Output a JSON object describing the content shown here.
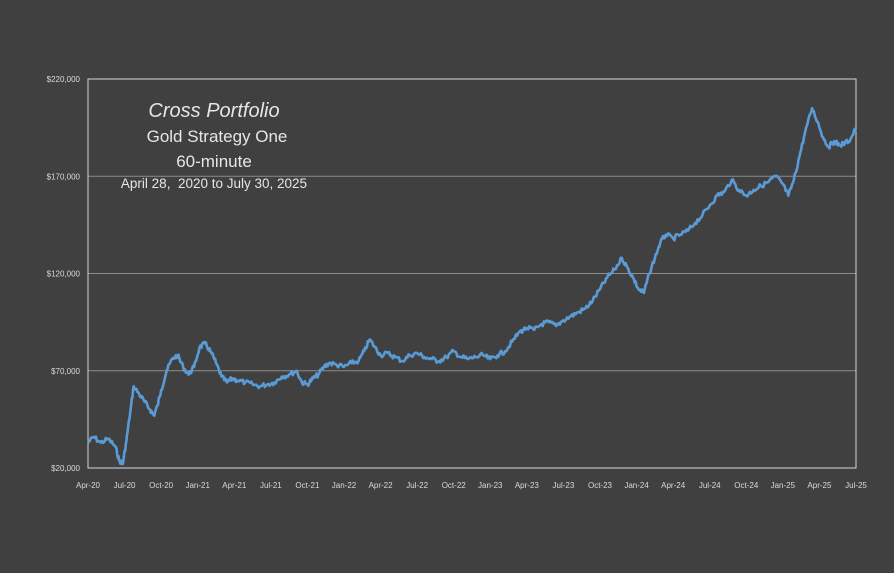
{
  "chart_data": {
    "type": "line",
    "title": "Cross Portfolio",
    "subtitle_lines": [
      "Gold Strategy One",
      "60-minute",
      "April 28,  2020 to July 30, 2025"
    ],
    "xlabel": "",
    "ylabel": "",
    "x_categories": [
      "Apr-20",
      "Jul-20",
      "Oct-20",
      "Jan-21",
      "Apr-21",
      "Jul-21",
      "Oct-21",
      "Jan-22",
      "Apr-22",
      "Jul-22",
      "Oct-22",
      "Jan-23",
      "Apr-23",
      "Jul-23",
      "Oct-23",
      "Jan-24",
      "Apr-24",
      "Jul-24",
      "Oct-24",
      "Jan-25",
      "Apr-25",
      "Jul-25"
    ],
    "y_ticks": [
      20000,
      70000,
      120000,
      170000,
      220000
    ],
    "y_tick_labels": [
      "$20,000",
      "$70,000",
      "$120,000",
      "$170,000",
      "$220,000"
    ],
    "ylim": [
      20000,
      220000
    ],
    "grid": "horizontal",
    "series": [
      {
        "color": "#5b9bd5",
        "points": [
          [
            0.0,
            33000
          ],
          [
            0.15,
            36000
          ],
          [
            0.35,
            33000
          ],
          [
            0.55,
            35000
          ],
          [
            0.75,
            31000
          ],
          [
            0.85,
            24000
          ],
          [
            0.95,
            22000
          ],
          [
            1.05,
            34000
          ],
          [
            1.15,
            48000
          ],
          [
            1.25,
            62000
          ],
          [
            1.4,
            58000
          ],
          [
            1.55,
            54000
          ],
          [
            1.7,
            50000
          ],
          [
            1.8,
            47000
          ],
          [
            1.9,
            52000
          ],
          [
            2.0,
            60000
          ],
          [
            2.15,
            70000
          ],
          [
            2.3,
            76000
          ],
          [
            2.45,
            78000
          ],
          [
            2.6,
            72000
          ],
          [
            2.75,
            68000
          ],
          [
            2.9,
            72000
          ],
          [
            3.05,
            82000
          ],
          [
            3.2,
            84000
          ],
          [
            3.35,
            80000
          ],
          [
            3.5,
            74000
          ],
          [
            3.65,
            67000
          ],
          [
            3.8,
            64000
          ],
          [
            3.95,
            66000
          ],
          [
            4.1,
            65000
          ],
          [
            4.3,
            64000
          ],
          [
            4.5,
            63000
          ],
          [
            4.7,
            62000
          ],
          [
            4.9,
            63000
          ],
          [
            5.1,
            64000
          ],
          [
            5.3,
            67000
          ],
          [
            5.5,
            68000
          ],
          [
            5.7,
            70000
          ],
          [
            5.85,
            64000
          ],
          [
            6.0,
            63000
          ],
          [
            6.15,
            66000
          ],
          [
            6.3,
            68000
          ],
          [
            6.45,
            72000
          ],
          [
            6.6,
            74000
          ],
          [
            6.8,
            73000
          ],
          [
            7.0,
            72000
          ],
          [
            7.2,
            74000
          ],
          [
            7.4,
            75000
          ],
          [
            7.55,
            80000
          ],
          [
            7.7,
            86000
          ],
          [
            7.85,
            82000
          ],
          [
            8.0,
            78000
          ],
          [
            8.2,
            79000
          ],
          [
            8.4,
            77000
          ],
          [
            8.6,
            75000
          ],
          [
            8.8,
            78000
          ],
          [
            9.0,
            79000
          ],
          [
            9.2,
            77000
          ],
          [
            9.4,
            76000
          ],
          [
            9.6,
            75000
          ],
          [
            9.8,
            77000
          ],
          [
            10.0,
            80000
          ],
          [
            10.2,
            77000
          ],
          [
            10.4,
            76000
          ],
          [
            10.6,
            77000
          ],
          [
            10.8,
            78000
          ],
          [
            11.0,
            76000
          ],
          [
            11.2,
            78000
          ],
          [
            11.4,
            80000
          ],
          [
            11.6,
            85000
          ],
          [
            11.8,
            90000
          ],
          [
            12.0,
            92000
          ],
          [
            12.2,
            91000
          ],
          [
            12.4,
            94000
          ],
          [
            12.6,
            95000
          ],
          [
            12.8,
            93000
          ],
          [
            13.0,
            96000
          ],
          [
            13.2,
            98000
          ],
          [
            13.4,
            100000
          ],
          [
            13.6,
            102000
          ],
          [
            13.8,
            106000
          ],
          [
            14.0,
            112000
          ],
          [
            14.2,
            118000
          ],
          [
            14.4,
            122000
          ],
          [
            14.6,
            128000
          ],
          [
            14.75,
            123000
          ],
          [
            14.9,
            118000
          ],
          [
            15.05,
            112000
          ],
          [
            15.2,
            110000
          ],
          [
            15.35,
            120000
          ],
          [
            15.5,
            128000
          ],
          [
            15.65,
            136000
          ],
          [
            15.8,
            140000
          ],
          [
            16.0,
            138000
          ],
          [
            16.2,
            140000
          ],
          [
            16.4,
            142000
          ],
          [
            16.6,
            146000
          ],
          [
            16.8,
            150000
          ],
          [
            17.0,
            155000
          ],
          [
            17.2,
            160000
          ],
          [
            17.4,
            162000
          ],
          [
            17.6,
            168000
          ],
          [
            17.8,
            163000
          ],
          [
            18.0,
            160000
          ],
          [
            18.2,
            163000
          ],
          [
            18.4,
            165000
          ],
          [
            18.6,
            167000
          ],
          [
            18.8,
            170000
          ],
          [
            19.0,
            166000
          ],
          [
            19.15,
            160000
          ],
          [
            19.3,
            168000
          ],
          [
            19.45,
            180000
          ],
          [
            19.6,
            192000
          ],
          [
            19.8,
            205000
          ],
          [
            19.95,
            198000
          ],
          [
            20.1,
            190000
          ],
          [
            20.25,
            185000
          ],
          [
            20.4,
            188000
          ],
          [
            20.55,
            186000
          ],
          [
            20.7,
            187000
          ],
          [
            20.85,
            189000
          ],
          [
            21.0,
            195000
          ]
        ]
      }
    ]
  }
}
